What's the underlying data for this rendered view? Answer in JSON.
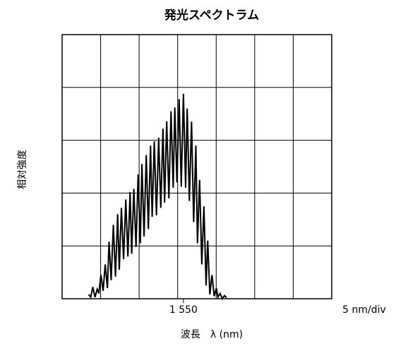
{
  "chart_data": {
    "type": "line",
    "title": "発光スペクトラム",
    "xlabel": "波長　λ (nm)",
    "ylabel": "相対強度",
    "x_tick_label": "1 550",
    "x_scale_label": "5 nm/div",
    "grid": true,
    "xlim": [
      1527.5,
      1577.5
    ],
    "ylim": [
      0,
      5
    ],
    "series": [
      {
        "values_x": [
          1532.4,
          1532.8,
          1533.2,
          1533.6,
          1534.0,
          1534.3,
          1534.7,
          1535.1,
          1535.5,
          1535.9,
          1536.2,
          1536.6,
          1537.0,
          1537.4,
          1537.8,
          1538.1,
          1538.5,
          1538.9,
          1539.3,
          1539.7,
          1540.1,
          1540.4,
          1540.8,
          1541.2,
          1541.6,
          1542.0,
          1542.3,
          1542.7,
          1543.1,
          1543.5,
          1543.9,
          1544.2,
          1544.6,
          1545.0,
          1545.4,
          1545.8,
          1546.2,
          1546.5,
          1546.9,
          1547.3,
          1547.7,
          1548.1,
          1548.4,
          1548.8,
          1549.2,
          1549.6,
          1550.0,
          1550.4,
          1550.7,
          1551.1,
          1551.5,
          1551.9,
          1552.3,
          1552.6,
          1553.0,
          1553.4,
          1553.8,
          1554.2,
          1554.5,
          1554.9,
          1555.3,
          1555.7,
          1556.1,
          1556.4,
          1556.8,
          1557.2,
          1557.6,
          1558.0
        ],
        "values": [
          0.08,
          0.03,
          0.22,
          0.03,
          0.18,
          0.1,
          0.45,
          0.15,
          0.65,
          0.2,
          1.08,
          0.35,
          1.4,
          0.42,
          1.6,
          0.55,
          1.72,
          0.75,
          1.88,
          0.8,
          2.02,
          0.85,
          2.08,
          0.98,
          2.35,
          1.05,
          2.55,
          1.18,
          2.72,
          1.32,
          2.9,
          1.55,
          2.98,
          1.58,
          3.05,
          1.72,
          3.22,
          1.82,
          3.36,
          1.9,
          3.55,
          2.1,
          3.62,
          2.2,
          3.78,
          2.12,
          3.88,
          2.1,
          3.6,
          1.85,
          3.35,
          1.45,
          2.9,
          1.05,
          2.25,
          0.65,
          1.75,
          0.25,
          1.1,
          0.08,
          0.45,
          0.05,
          0.2,
          0.03,
          0.1,
          0.0,
          0.06,
          0.02
        ]
      }
    ]
  }
}
